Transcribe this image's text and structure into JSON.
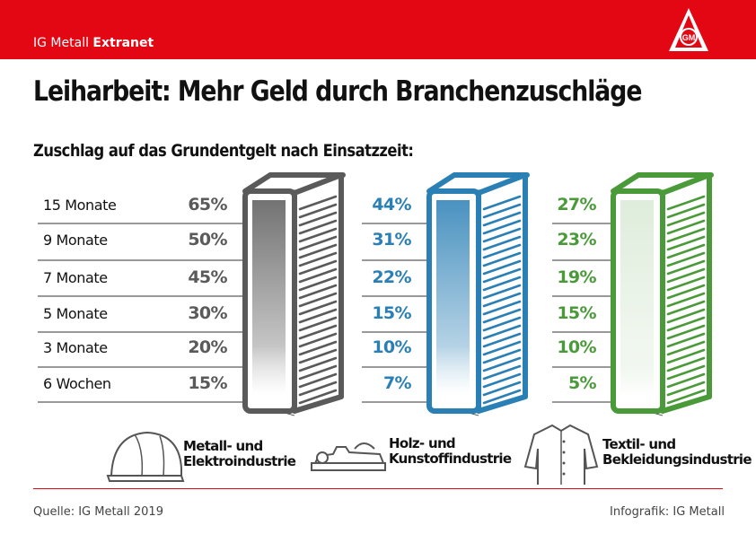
{
  "header": {
    "brand_regular": "IG Metall",
    "brand_bold": "Extranet",
    "logo_text": "IGM"
  },
  "title": "Leiharbeit: Mehr Geld durch Branchenzuschläge",
  "subtitle": "Zuschlag auf das Grundentgelt nach Einsatzzeit:",
  "chart_data": {
    "type": "table",
    "categories": [
      "15 Monate",
      "9 Monate",
      "7 Monate",
      "5 Monate",
      "3 Monate",
      "6 Wochen"
    ],
    "unit": "%",
    "series": [
      {
        "name": "Metall- und Elektroindustrie",
        "label_lines": [
          "Metall- und",
          "Elektroindustrie"
        ],
        "values": [
          65,
          50,
          45,
          30,
          20,
          15
        ],
        "color": "#5a5a5a",
        "text_color": "#5a5a5a",
        "icon": "hardhat-icon"
      },
      {
        "name": "Holz- und Kunstoffindustrie",
        "label_lines": [
          "Holz- und",
          "Kunstoffindustrie"
        ],
        "values": [
          44,
          31,
          22,
          15,
          10,
          7
        ],
        "color": "#2a7fb5",
        "text_color": "#2a7fb5",
        "icon": "planer-icon"
      },
      {
        "name": "Textil- und Bekleidungsindustrie",
        "label_lines": [
          "Textil- und",
          "Bekleidungsindustrie"
        ],
        "values": [
          27,
          23,
          19,
          15,
          10,
          5
        ],
        "color": "#4a9a3a",
        "text_color": "#4a9a3a",
        "icon": "shirt-icon"
      }
    ]
  },
  "footer": {
    "source": "Quelle: IG Metall 2019",
    "credit": "Infografik: IG Metall"
  }
}
